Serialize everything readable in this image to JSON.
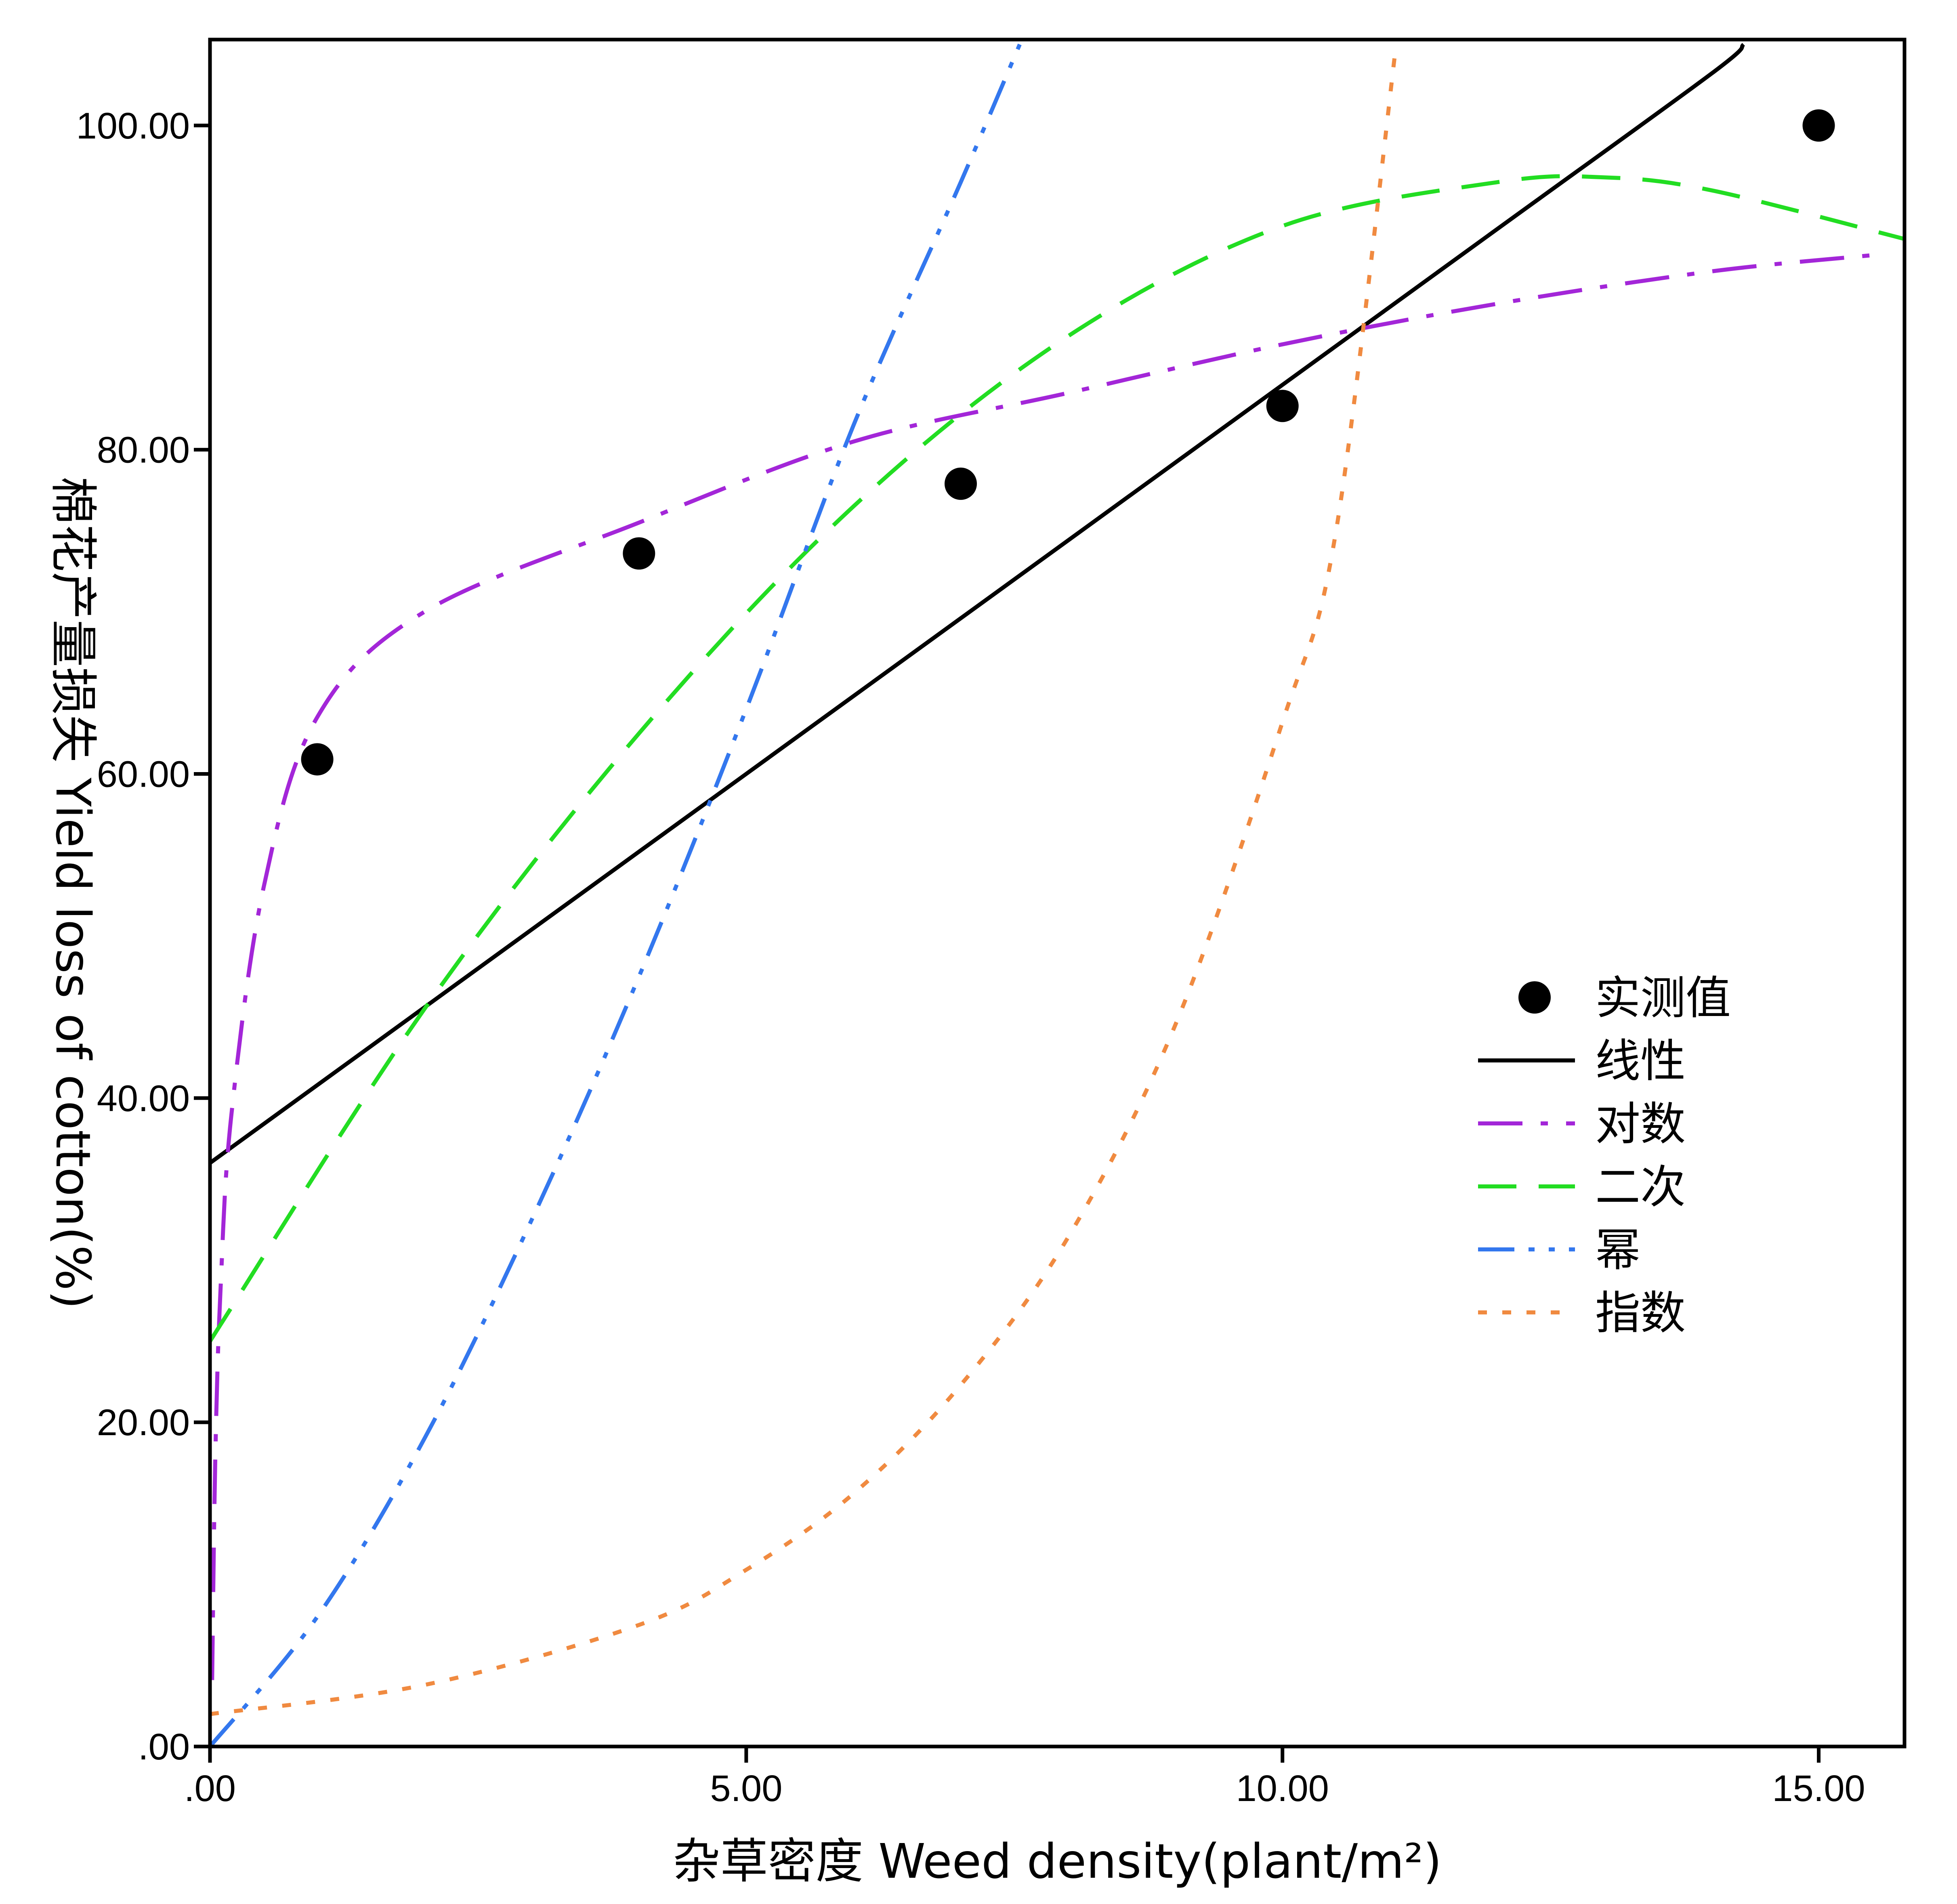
{
  "chart_data": {
    "type": "line",
    "title": "",
    "xlabel": "杂草密度 Weed density(plant/m²)",
    "ylabel": "棉花产量损失 Yield loss of cotton(%)",
    "xlim": [
      0,
      15.8
    ],
    "ylim": [
      0,
      105.3
    ],
    "xticks": [
      0,
      5,
      10,
      15
    ],
    "xtick_labels": [
      ".00",
      "5.00",
      "10.00",
      "15.00"
    ],
    "yticks": [
      0,
      20,
      40,
      60,
      80,
      100
    ],
    "ytick_labels": [
      ".00",
      "20.00",
      "40.00",
      "60.00",
      "80.00",
      "100.00"
    ],
    "grid": false,
    "legend_position": "right-middle",
    "observed": {
      "name": "实测值",
      "color": "#000000",
      "points": [
        [
          1,
          60.9
        ],
        [
          4,
          73.6
        ],
        [
          7,
          77.9
        ],
        [
          10,
          82.7
        ],
        [
          15,
          100.0
        ]
      ]
    },
    "series": [
      {
        "name": "线性",
        "model": "linear",
        "color": "#000000",
        "dash": "solid",
        "x": [
          0,
          2,
          4,
          6,
          8,
          10,
          12,
          14,
          14.3
        ],
        "y": [
          36.0,
          45.6,
          55.2,
          64.8,
          74.4,
          84.0,
          93.6,
          103.2,
          105.0
        ]
      },
      {
        "name": "对数",
        "model": "logarithmic",
        "color": "#a326d8",
        "dash": "dashdot",
        "x": [
          0.02,
          0.05,
          0.1,
          0.2,
          0.5,
          1,
          2,
          4,
          6,
          8,
          10,
          12,
          14,
          15.5
        ],
        "y": [
          4.1,
          18.0,
          28.5,
          39.0,
          53.0,
          63.5,
          70.0,
          75.5,
          80.5,
          83.5,
          86.5,
          89.0,
          91.0,
          92.0
        ]
      },
      {
        "name": "二次",
        "model": "quadratic",
        "color": "#22dd22",
        "dash": "dashed",
        "x": [
          0,
          2,
          4,
          6,
          8,
          10,
          12,
          13,
          14,
          15.8
        ],
        "y": [
          25.0,
          45.5,
          62.5,
          76.5,
          87.0,
          93.8,
          96.5,
          96.8,
          96.0,
          93.0
        ]
      },
      {
        "name": "幂",
        "model": "power",
        "color": "#3377ee",
        "dash": "dashdotdot",
        "x": [
          0,
          1,
          2,
          3,
          4,
          5,
          6,
          7,
          7.55
        ],
        "y": [
          0.0,
          8.0,
          19.0,
          32.5,
          47.5,
          64.0,
          81.5,
          96.5,
          105.0
        ]
      },
      {
        "name": "指数",
        "model": "exponential",
        "color": "#f08a40",
        "dash": "dotted",
        "x": [
          0,
          2,
          4,
          5,
          6,
          7,
          8,
          9,
          10,
          10.5,
          11.06
        ],
        "y": [
          2.0,
          3.8,
          7.5,
          10.9,
          15.6,
          22.3,
          31.4,
          44.5,
          63.2,
          75.0,
          105.0
        ]
      }
    ]
  }
}
